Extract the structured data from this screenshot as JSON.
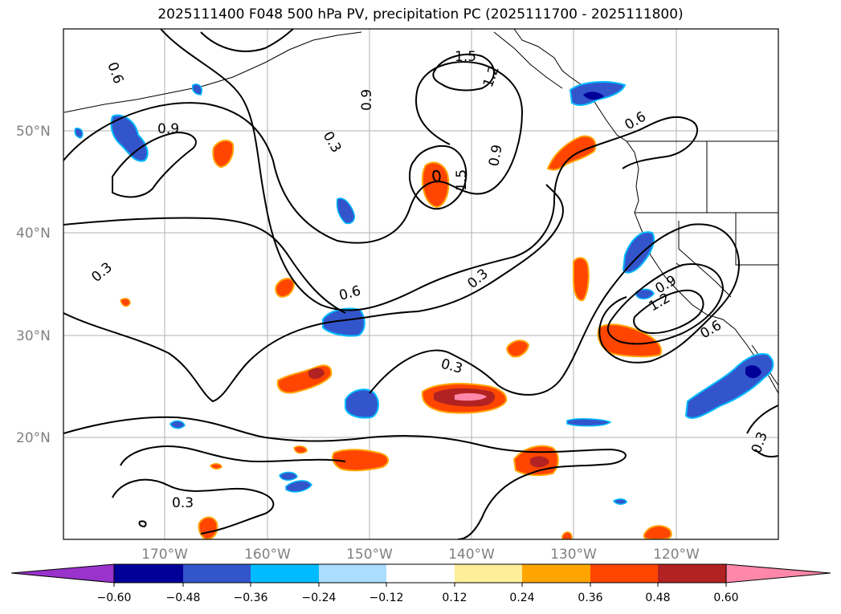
{
  "title": "2025111400 F048 500 hPa PV, precipitation PC (2025111700 - 2025111800)",
  "colors": {
    "purple": "#9933cc",
    "navy": "#000099",
    "royal_blue": "#3355cc",
    "sky_blue": "#00bbff",
    "light_blue": "#aaddff",
    "white": "#ffffff",
    "light_yellow": "#ffee99",
    "orange": "#ffa500",
    "red_orange": "#ff4500",
    "dark_red": "#b22222",
    "pink": "#ff88aa",
    "land": "#ffffff",
    "grid": "#b0b0b0",
    "tick_label": "#808080"
  },
  "map": {
    "lat_labels": [
      "50°N",
      "40°N",
      "30°N",
      "20°N"
    ],
    "lon_labels": [
      "170°W",
      "160°W",
      "150°W",
      "140°W",
      "130°W",
      "120°W"
    ],
    "contour_labels": [
      "0.6",
      "0.9",
      "0.3",
      "0.9",
      "1.5",
      "1.2",
      "0.9",
      "1.5",
      "0.6",
      "0.3",
      "0.6",
      "0.3",
      "0.3",
      "0.9",
      "1.2",
      "0.6",
      "0.3",
      "0.3"
    ]
  },
  "colorbar": {
    "ticks": [
      "−0.60",
      "−0.48",
      "−0.36",
      "−0.24",
      "−0.12",
      "0.12",
      "0.24",
      "0.36",
      "0.48",
      "0.60"
    ]
  }
}
